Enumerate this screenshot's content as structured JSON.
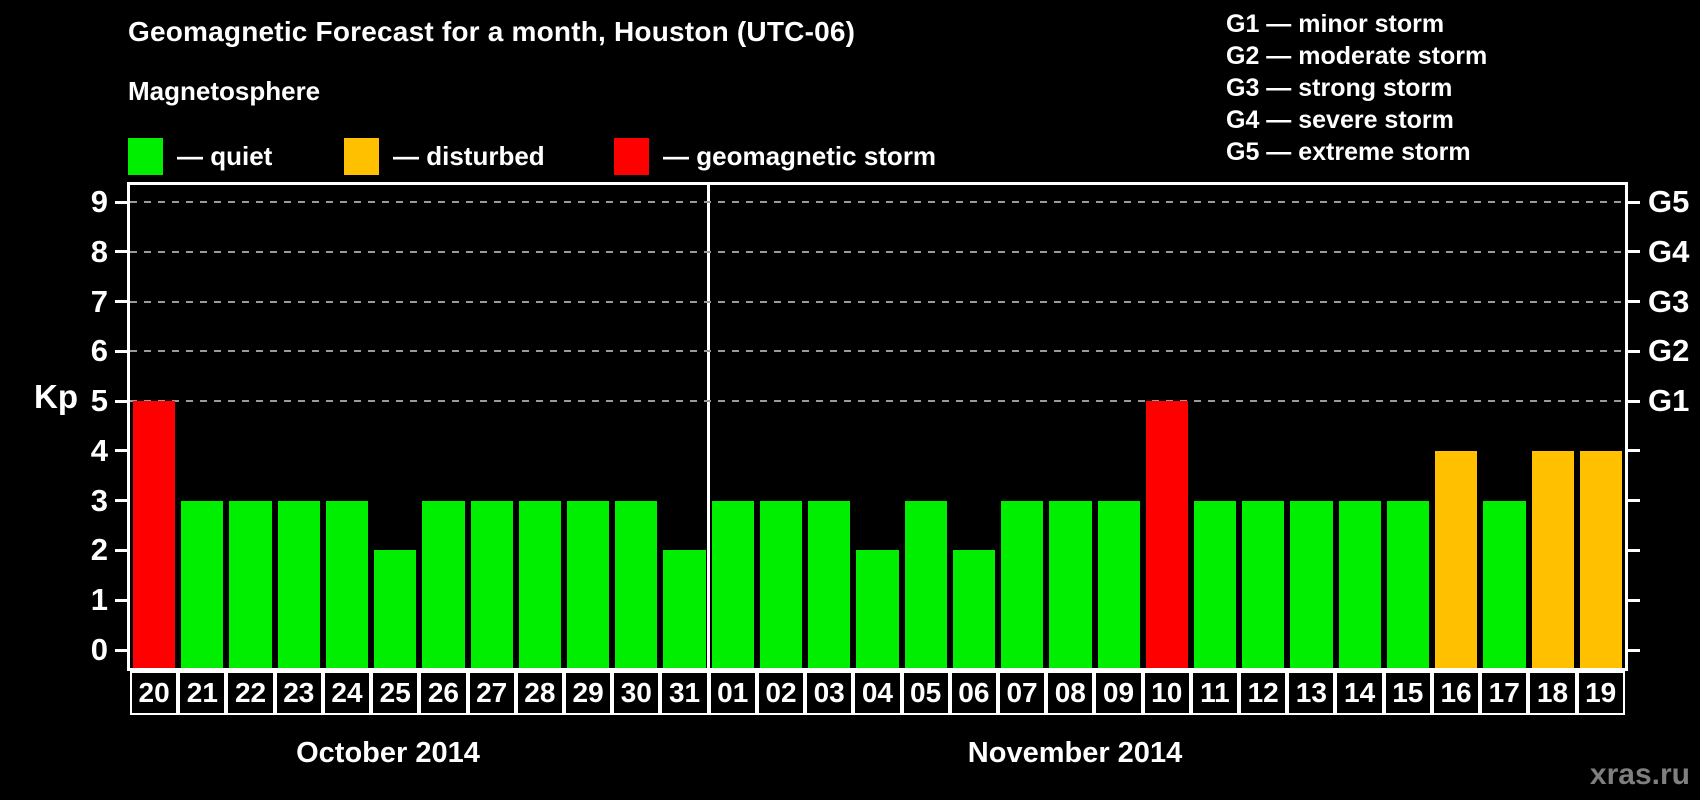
{
  "title": "Geomagnetic Forecast for a month, Houston (UTC-06)",
  "subtitle": "Magnetosphere",
  "legend": {
    "items": [
      {
        "name": "quiet",
        "label": "— quiet",
        "color": "#00EE00"
      },
      {
        "name": "disturbed",
        "label": "— disturbed",
        "color": "#FFC000"
      },
      {
        "name": "storm",
        "label": "— geomagnetic storm",
        "color": "#FF0000"
      }
    ]
  },
  "storm_scale_legend": [
    "G1 — minor storm",
    "G2 — moderate storm",
    "G3 — strong storm",
    "G4 — severe storm",
    "G5 — extreme storm"
  ],
  "watermark": "xras.ru",
  "chart_data": {
    "type": "bar",
    "title": "Geomagnetic Forecast for a month, Houston (UTC-06)",
    "ylabel": "Kp",
    "xlabel": "",
    "ylim": [
      0,
      9
    ],
    "yticks": [
      0,
      1,
      2,
      3,
      4,
      5,
      6,
      7,
      8,
      9
    ],
    "gridlines_at": [
      5,
      6,
      7,
      8,
      9
    ],
    "grid_style": "dashed horizontal lines at storm levels G1–G5",
    "right_axis_labels": [
      {
        "value": 5,
        "label": "G1"
      },
      {
        "value": 6,
        "label": "G2"
      },
      {
        "value": 7,
        "label": "G3"
      },
      {
        "value": 8,
        "label": "G4"
      },
      {
        "value": 9,
        "label": "G5"
      }
    ],
    "months": [
      {
        "label": "October 2014",
        "days": 12
      },
      {
        "label": "November 2014",
        "days": 19
      }
    ],
    "categories": [
      "20",
      "21",
      "22",
      "23",
      "24",
      "25",
      "26",
      "27",
      "28",
      "29",
      "30",
      "31",
      "01",
      "02",
      "03",
      "04",
      "05",
      "06",
      "07",
      "08",
      "09",
      "10",
      "11",
      "12",
      "13",
      "14",
      "15",
      "16",
      "17",
      "18",
      "19"
    ],
    "values": [
      5,
      3,
      3,
      3,
      3,
      2,
      3,
      3,
      3,
      3,
      3,
      2,
      3,
      3,
      3,
      2,
      3,
      2,
      3,
      3,
      3,
      5,
      3,
      3,
      3,
      3,
      3,
      4,
      3,
      4,
      4
    ],
    "statuses": [
      "storm",
      "quiet",
      "quiet",
      "quiet",
      "quiet",
      "quiet",
      "quiet",
      "quiet",
      "quiet",
      "quiet",
      "quiet",
      "quiet",
      "quiet",
      "quiet",
      "quiet",
      "quiet",
      "quiet",
      "quiet",
      "quiet",
      "quiet",
      "quiet",
      "storm",
      "quiet",
      "quiet",
      "quiet",
      "quiet",
      "quiet",
      "disturbed",
      "quiet",
      "disturbed",
      "disturbed"
    ],
    "colors_by_status": {
      "quiet": "#00EE00",
      "disturbed": "#FFC000",
      "storm": "#FF0000"
    },
    "legend_position": "top-left",
    "background_color": "#000000",
    "axis_color": "#FFFFFF",
    "gridline_color": "#9A9A9A"
  }
}
